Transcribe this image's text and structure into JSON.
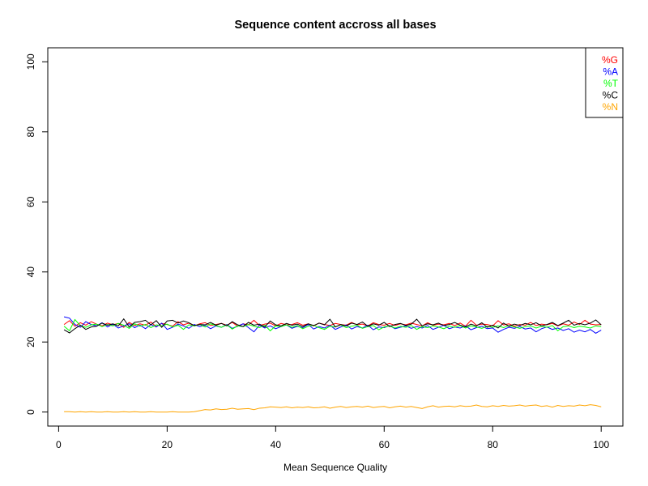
{
  "chart_data": {
    "type": "line",
    "title": "Sequence content accross all bases",
    "xlabel": "Mean Sequence Quality",
    "ylabel": "",
    "xlim": [
      -2,
      104
    ],
    "ylim": [
      -4,
      104
    ],
    "xticks": [
      0,
      20,
      40,
      60,
      80,
      100
    ],
    "yticks": [
      0,
      20,
      40,
      60,
      80,
      100
    ],
    "legend_position": "top-right",
    "grid": false,
    "x": [
      1,
      2,
      3,
      4,
      5,
      6,
      7,
      8,
      9,
      10,
      11,
      12,
      13,
      14,
      15,
      16,
      17,
      18,
      19,
      20,
      21,
      22,
      23,
      24,
      25,
      26,
      27,
      28,
      29,
      30,
      31,
      32,
      33,
      34,
      35,
      36,
      37,
      38,
      39,
      40,
      41,
      42,
      43,
      44,
      45,
      46,
      47,
      48,
      49,
      50,
      51,
      52,
      53,
      54,
      55,
      56,
      57,
      58,
      59,
      60,
      61,
      62,
      63,
      64,
      65,
      66,
      67,
      68,
      69,
      70,
      71,
      72,
      73,
      74,
      75,
      76,
      77,
      78,
      79,
      80,
      81,
      82,
      83,
      84,
      85,
      86,
      87,
      88,
      89,
      90,
      91,
      92,
      93,
      94,
      95,
      96,
      97,
      98,
      99,
      100
    ],
    "series": [
      {
        "name": "%G",
        "color": "#ff0000",
        "values": [
          25.0,
          26.1,
          24.5,
          25.5,
          24.8,
          25.8,
          25.1,
          24.6,
          25.4,
          24.9,
          25.3,
          24.2,
          25.6,
          24.7,
          25.2,
          24.8,
          25.7,
          24.4,
          25.3,
          25.0,
          24.5,
          25.8,
          24.9,
          25.4,
          24.6,
          25.2,
          25.5,
          24.7,
          25.0,
          25.3,
          24.8,
          25.6,
          24.5,
          25.2,
          24.9,
          26.2,
          24.7,
          25.1,
          25.4,
          24.6,
          25.3,
          24.9,
          25.0,
          25.5,
          24.8,
          25.2,
          24.6,
          25.4,
          25.0,
          24.7,
          25.3,
          25.0,
          24.8,
          25.6,
          24.9,
          25.1,
          24.6,
          25.5,
          25.0,
          24.8,
          25.3,
          24.7,
          25.2,
          24.9,
          25.4,
          25.0,
          24.6,
          25.5,
          24.8,
          25.1,
          24.9,
          25.3,
          24.7,
          25.4,
          24.5,
          26.2,
          24.8,
          25.1,
          25.0,
          24.6,
          26.1,
          24.9,
          25.2,
          24.5,
          25.0,
          24.8,
          25.6,
          24.7,
          25.1,
          24.9,
          25.3,
          24.6,
          25.2,
          24.8,
          25.7,
          25.0,
          26.2,
          25.1,
          24.9,
          25.0
        ]
      },
      {
        "name": "%A",
        "color": "#0000ff",
        "values": [
          27.2,
          26.8,
          25.0,
          24.2,
          25.8,
          25.0,
          24.6,
          25.5,
          24.3,
          25.1,
          24.0,
          24.6,
          25.2,
          24.1,
          24.8,
          23.8,
          25.0,
          24.3,
          25.4,
          23.6,
          24.2,
          25.1,
          24.6,
          23.9,
          25.0,
          24.4,
          24.8,
          23.8,
          24.6,
          24.2,
          25.0,
          23.9,
          24.5,
          25.2,
          24.1,
          22.9,
          24.8,
          24.0,
          24.6,
          23.8,
          24.4,
          24.9,
          23.9,
          24.5,
          24.1,
          25.0,
          23.7,
          24.4,
          24.0,
          24.8,
          23.6,
          24.3,
          24.9,
          23.7,
          24.4,
          24.0,
          24.8,
          23.5,
          24.3,
          24.1,
          24.7,
          23.8,
          24.2,
          24.6,
          23.9,
          24.4,
          24.0,
          24.7,
          23.6,
          24.2,
          24.8,
          23.8,
          24.3,
          24.0,
          24.6,
          23.5,
          24.1,
          24.5,
          23.8,
          24.0,
          22.8,
          23.6,
          24.2,
          23.9,
          24.4,
          23.7,
          24.0,
          22.9,
          23.8,
          24.3,
          23.6,
          24.0,
          23.3,
          23.8,
          22.8,
          23.4,
          22.9,
          23.6,
          22.5,
          23.4
        ]
      },
      {
        "name": "%T",
        "color": "#00ff00",
        "values": [
          24.5,
          23.2,
          26.4,
          24.7,
          24.2,
          24.9,
          25.1,
          24.4,
          25.0,
          24.6,
          25.3,
          24.8,
          23.9,
          25.2,
          24.5,
          25.0,
          24.1,
          24.9,
          24.6,
          25.1,
          24.3,
          24.8,
          23.6,
          24.9,
          24.6,
          25.0,
          24.3,
          25.2,
          24.7,
          24.2,
          24.9,
          23.7,
          24.6,
          24.4,
          25.0,
          24.5,
          24.1,
          24.8,
          23.2,
          24.6,
          24.4,
          24.9,
          24.2,
          24.7,
          23.8,
          24.5,
          24.8,
          24.1,
          23.6,
          24.5,
          24.3,
          24.9,
          24.1,
          24.5,
          24.8,
          23.9,
          24.4,
          24.7,
          23.5,
          24.3,
          24.6,
          24.0,
          24.5,
          24.2,
          24.7,
          23.6,
          24.4,
          24.1,
          24.6,
          24.3,
          23.8,
          24.5,
          24.2,
          24.7,
          24.0,
          24.6,
          24.3,
          23.9,
          24.5,
          24.2,
          24.6,
          24.1,
          24.7,
          24.3,
          23.9,
          24.4,
          24.6,
          24.0,
          24.5,
          24.2,
          24.7,
          23.2,
          24.4,
          24.6,
          24.1,
          24.5,
          24.3,
          24.0,
          24.6,
          24.4
        ]
      },
      {
        "name": "%C",
        "color": "#000000",
        "values": [
          23.5,
          22.6,
          23.8,
          24.8,
          23.6,
          24.3,
          24.5,
          25.4,
          24.8,
          25.2,
          24.6,
          26.6,
          24.3,
          25.6,
          25.8,
          26.2,
          24.9,
          26.1,
          24.2,
          26.0,
          26.2,
          25.4,
          26.0,
          25.5,
          24.7,
          25.0,
          24.9,
          25.6,
          24.8,
          25.3,
          24.6,
          25.8,
          24.9,
          24.4,
          25.6,
          24.8,
          25.1,
          24.3,
          26.0,
          24.9,
          24.6,
          25.3,
          24.8,
          25.1,
          24.4,
          25.2,
          24.7,
          25.4,
          24.9,
          26.5,
          24.3,
          25.0,
          24.6,
          25.4,
          25.0,
          25.7,
          24.5,
          25.2,
          24.8,
          25.6,
          24.4,
          25.0,
          25.3,
          24.7,
          25.1,
          26.5,
          24.6,
          25.2,
          24.9,
          25.4,
          24.7,
          25.0,
          25.6,
          24.8,
          24.3,
          25.1,
          24.6,
          25.5,
          24.2,
          24.8,
          24.0,
          25.4,
          24.5,
          25.1,
          24.7,
          25.3,
          24.9,
          25.5,
          24.6,
          25.0,
          25.6,
          24.7,
          25.4,
          26.2,
          24.8,
          25.3,
          24.9,
          25.4,
          26.3,
          24.9
        ]
      },
      {
        "name": "%N",
        "color": "#ffa500",
        "values": [
          0.1,
          0.1,
          0.0,
          0.1,
          0.0,
          0.1,
          0.0,
          0.0,
          0.1,
          0.0,
          0.0,
          0.1,
          0.0,
          0.1,
          0.0,
          0.0,
          0.1,
          0.0,
          0.0,
          0.0,
          0.1,
          0.0,
          0.0,
          0.0,
          0.1,
          0.4,
          0.7,
          0.6,
          0.9,
          0.7,
          0.8,
          1.1,
          0.8,
          0.9,
          1.0,
          0.7,
          1.1,
          1.2,
          1.5,
          1.4,
          1.3,
          1.5,
          1.2,
          1.4,
          1.3,
          1.5,
          1.2,
          1.3,
          1.5,
          1.1,
          1.4,
          1.6,
          1.3,
          1.5,
          1.6,
          1.4,
          1.7,
          1.3,
          1.5,
          1.6,
          1.2,
          1.5,
          1.7,
          1.4,
          1.6,
          1.3,
          1.0,
          1.5,
          1.8,
          1.4,
          1.6,
          1.7,
          1.5,
          1.8,
          1.6,
          1.7,
          2.0,
          1.6,
          1.5,
          1.8,
          1.6,
          1.9,
          1.7,
          1.8,
          2.0,
          1.7,
          1.9,
          2.0,
          1.6,
          1.8,
          1.4,
          1.9,
          1.6,
          1.8,
          1.7,
          2.0,
          1.8,
          2.1,
          1.9,
          1.5
        ]
      }
    ]
  }
}
